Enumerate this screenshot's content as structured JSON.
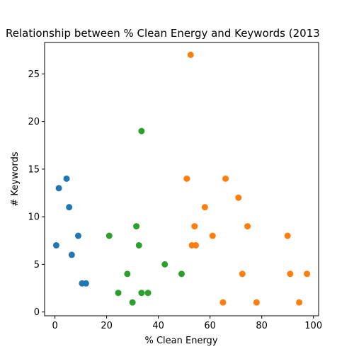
{
  "chart_data": {
    "type": "scatter",
    "title": "Relationship between % Clean Energy and Keywords (2013",
    "xlabel": "% Clean Energy",
    "ylabel": "# Keywords",
    "xlim": [
      -4,
      102
    ],
    "ylim": [
      -0.4,
      28.3
    ],
    "x_ticks": [
      0,
      20,
      40,
      60,
      80,
      100
    ],
    "y_ticks": [
      0,
      5,
      10,
      15,
      20,
      25
    ],
    "grid": false,
    "series": [
      {
        "color": "#1f77b4",
        "points": [
          {
            "x": 0.5,
            "y": 7
          },
          {
            "x": 1.5,
            "y": 13
          },
          {
            "x": 4.5,
            "y": 14
          },
          {
            "x": 5.5,
            "y": 11
          },
          {
            "x": 6.5,
            "y": 6
          },
          {
            "x": 9,
            "y": 8
          },
          {
            "x": 10.5,
            "y": 3
          },
          {
            "x": 12,
            "y": 3
          }
        ]
      },
      {
        "color": "#2ca02c",
        "points": [
          {
            "x": 21,
            "y": 8
          },
          {
            "x": 24.5,
            "y": 2
          },
          {
            "x": 28,
            "y": 4
          },
          {
            "x": 30,
            "y": 1
          },
          {
            "x": 31.5,
            "y": 9
          },
          {
            "x": 32.5,
            "y": 7
          },
          {
            "x": 33.5,
            "y": 19
          },
          {
            "x": 33.5,
            "y": 2
          },
          {
            "x": 36,
            "y": 2
          },
          {
            "x": 42.5,
            "y": 5
          },
          {
            "x": 49,
            "y": 4
          }
        ]
      },
      {
        "color": "#ff7f0e",
        "points": [
          {
            "x": 51,
            "y": 14
          },
          {
            "x": 52.5,
            "y": 27
          },
          {
            "x": 53,
            "y": 7
          },
          {
            "x": 54,
            "y": 9
          },
          {
            "x": 54.5,
            "y": 7
          },
          {
            "x": 58,
            "y": 11
          },
          {
            "x": 61,
            "y": 8
          },
          {
            "x": 65,
            "y": 1
          },
          {
            "x": 66,
            "y": 14
          },
          {
            "x": 71,
            "y": 12
          },
          {
            "x": 72.5,
            "y": 4
          },
          {
            "x": 74.5,
            "y": 9
          },
          {
            "x": 78,
            "y": 1
          },
          {
            "x": 90,
            "y": 8
          },
          {
            "x": 91,
            "y": 4
          },
          {
            "x": 94.5,
            "y": 1
          },
          {
            "x": 97.5,
            "y": 4
          }
        ]
      }
    ]
  }
}
